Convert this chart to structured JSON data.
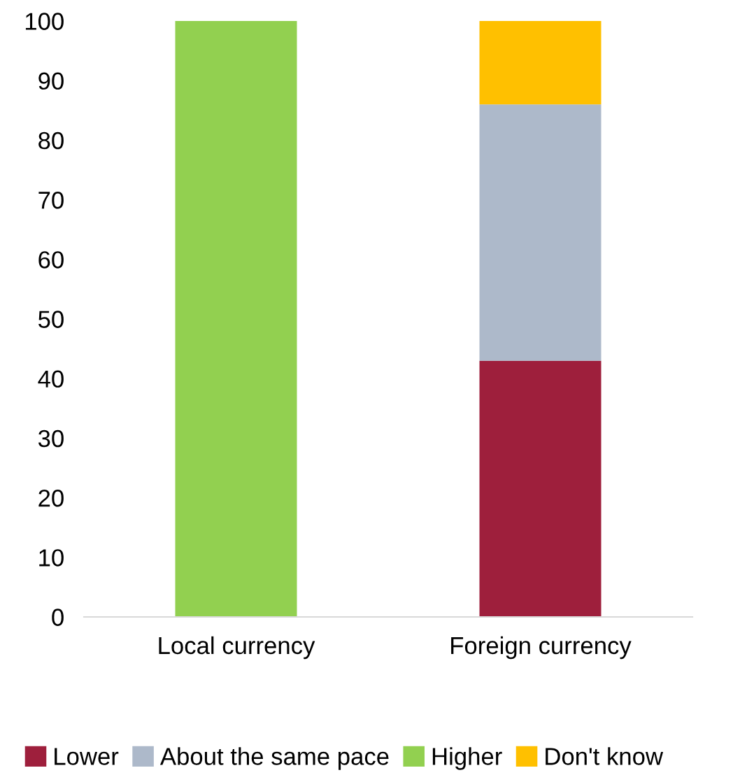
{
  "chart_data": {
    "type": "bar",
    "stacked": true,
    "categories": [
      "Local currency",
      "Foreign currency"
    ],
    "series": [
      {
        "name": "Lower",
        "color": "#9e1f3c",
        "values": [
          0,
          43
        ]
      },
      {
        "name": "About the same pace",
        "color": "#adb9ca",
        "values": [
          0,
          43
        ]
      },
      {
        "name": "Higher",
        "color": "#92d050",
        "values": [
          100,
          0
        ]
      },
      {
        "name": "Don't know",
        "color": "#ffc000",
        "values": [
          0,
          14
        ]
      }
    ],
    "ylim": [
      0,
      100
    ],
    "yticks": [
      0,
      10,
      20,
      30,
      40,
      50,
      60,
      70,
      80,
      90,
      100
    ],
    "grid": false,
    "legend": "bottom"
  }
}
